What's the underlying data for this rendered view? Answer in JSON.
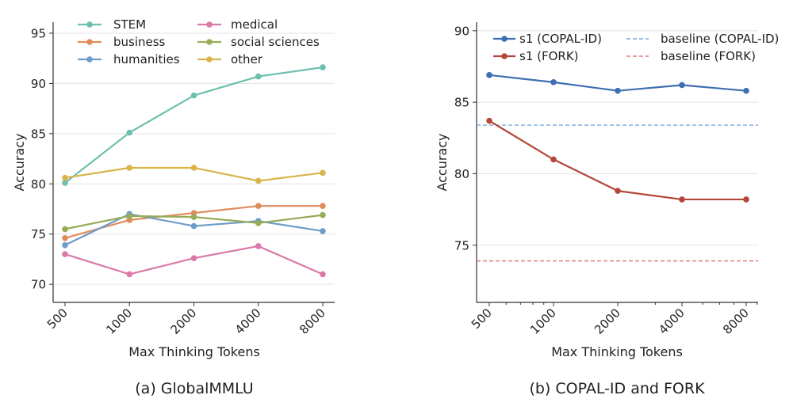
{
  "chart_data": [
    {
      "type": "line",
      "caption": "(a) GlobalMMLU",
      "xlabel": "Max Thinking Tokens",
      "ylabel": "Accuracy",
      "categories": [
        "500",
        "1000",
        "2000",
        "4000",
        "8000"
      ],
      "ylim": [
        68.2,
        96.1
      ],
      "yticks": [
        70,
        75,
        80,
        85,
        90,
        95
      ],
      "grid": "horizontal",
      "legend": "top-left, two columns",
      "series": [
        {
          "name": "STEM",
          "color": "#6dbfae",
          "values": [
            80.1,
            85.1,
            88.8,
            90.7,
            91.6
          ]
        },
        {
          "name": "business",
          "color": "#e08b5a",
          "values": [
            74.6,
            76.4,
            77.1,
            77.8,
            77.8
          ]
        },
        {
          "name": "humanities",
          "color": "#6d9cc8",
          "values": [
            73.9,
            77.0,
            75.8,
            76.3,
            75.3
          ]
        },
        {
          "name": "medical",
          "color": "#d97aa8",
          "values": [
            73.0,
            71.0,
            72.6,
            73.8,
            71.0
          ]
        },
        {
          "name": "social sciences",
          "color": "#97ac58",
          "values": [
            75.5,
            76.8,
            76.7,
            76.1,
            76.9
          ]
        },
        {
          "name": "other",
          "color": "#d8b44a",
          "values": [
            80.6,
            81.6,
            81.6,
            80.3,
            81.1
          ]
        }
      ]
    },
    {
      "type": "line",
      "caption": "(b) COPAL-ID and FORK",
      "xlabel": "Max Thinking Tokens",
      "ylabel": "Accuracy",
      "categories": [
        "500",
        "1000",
        "2000",
        "4000",
        "8000"
      ],
      "ylim": [
        71.0,
        90.6
      ],
      "yticks": [
        75,
        80,
        85,
        90
      ],
      "grid": "horizontal",
      "legend": "top, two columns",
      "series": [
        {
          "name": "s1 (COPAL-ID)",
          "color": "#3e6fb0",
          "values": [
            86.9,
            86.4,
            85.8,
            86.2,
            85.8
          ]
        },
        {
          "name": "s1 (FORK)",
          "color": "#b5463a",
          "values": [
            83.7,
            81.0,
            78.8,
            78.2,
            78.2
          ]
        }
      ],
      "baselines": [
        {
          "name": "baseline (COPAL-ID)",
          "color": "#7aa6d4",
          "value": 83.4
        },
        {
          "name": "baseline (FORK)",
          "color": "#d9807a",
          "value": 73.9
        }
      ]
    }
  ]
}
